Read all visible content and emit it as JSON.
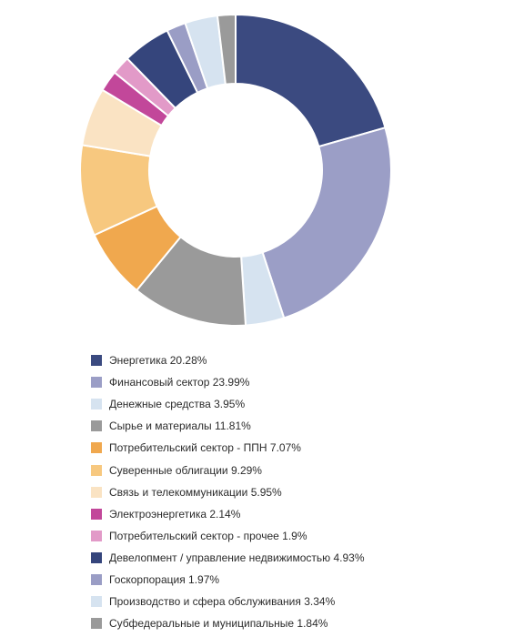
{
  "chart_data": {
    "type": "pie",
    "donut": true,
    "title": "",
    "legend_position": "bottom",
    "slices": [
      {
        "label": "Энергетика",
        "value": 20.28,
        "value_text": "20.28%",
        "color": "#3b4a80"
      },
      {
        "label": "Финансовый сектор",
        "value": 23.99,
        "value_text": "23.99%",
        "color": "#9b9ec6"
      },
      {
        "label": "Денежные средства",
        "value": 3.95,
        "value_text": "3.95%",
        "color": "#d6e3f0"
      },
      {
        "label": "Сырье и материалы",
        "value": 11.81,
        "value_text": "11.81%",
        "color": "#9a9a9a"
      },
      {
        "label": "Потребительский сектор - ППН",
        "value": 7.07,
        "value_text": "7.07%",
        "color": "#f0a84e"
      },
      {
        "label": "Суверенные облигации",
        "value": 9.29,
        "value_text": "9.29%",
        "color": "#f7c87f"
      },
      {
        "label": "Связь и телекоммуникации",
        "value": 5.95,
        "value_text": "5.95%",
        "color": "#fae3c3"
      },
      {
        "label": "Электроэнергетика",
        "value": 2.14,
        "value_text": "2.14%",
        "color": "#c2479a"
      },
      {
        "label": "Потребительский сектор - прочее",
        "value": 1.9,
        "value_text": "1.9%",
        "color": "#e29ac8"
      },
      {
        "label": "Девелопмент / управление недвижимостью",
        "value": 4.93,
        "value_text": "4.93%",
        "color": "#35457c"
      },
      {
        "label": "Госкорпорация",
        "value": 1.97,
        "value_text": "1.97%",
        "color": "#9a9dc5"
      },
      {
        "label": "Производство и сфера обслуживания",
        "value": 3.34,
        "value_text": "3.34%",
        "color": "#d6e3f0"
      },
      {
        "label": "Субфедеральные и муниципальные",
        "value": 1.84,
        "value_text": "1.84%",
        "color": "#9a9a9a"
      }
    ]
  }
}
